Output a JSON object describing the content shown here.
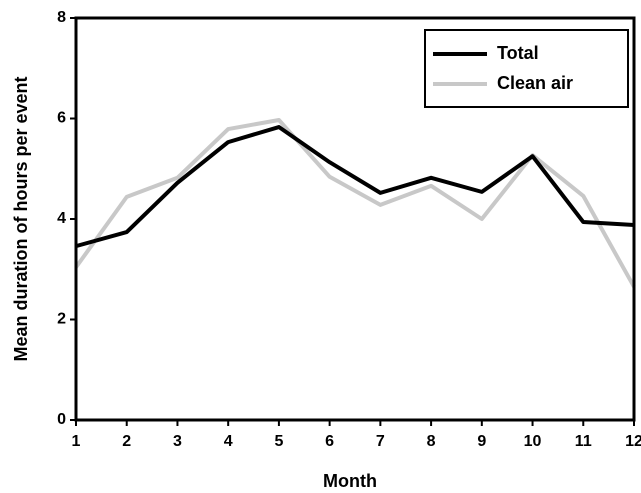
{
  "chart_data": {
    "type": "line",
    "x": [
      1,
      2,
      3,
      4,
      5,
      6,
      7,
      8,
      9,
      10,
      11,
      12
    ],
    "series": [
      {
        "name": "Total",
        "color": "#000000",
        "values": [
          3.46,
          3.74,
          4.72,
          5.53,
          5.83,
          5.13,
          4.52,
          4.82,
          4.54,
          5.25,
          3.94,
          3.88
        ]
      },
      {
        "name": "Clean air",
        "color": "#c8c8c8",
        "values": [
          3.04,
          4.44,
          4.82,
          5.79,
          5.97,
          4.84,
          4.28,
          4.66,
          4.0,
          5.27,
          4.46,
          2.65
        ]
      }
    ],
    "xlabel": "Month",
    "ylabel": "Mean duration of hours per event",
    "xlim": [
      1,
      12
    ],
    "xticks": [
      1,
      2,
      3,
      4,
      5,
      6,
      7,
      8,
      9,
      10,
      11,
      12
    ],
    "ylim": [
      0,
      8
    ],
    "yticks": [
      0,
      2,
      4,
      6,
      8
    ],
    "legend": "upper right",
    "grid": false
  }
}
